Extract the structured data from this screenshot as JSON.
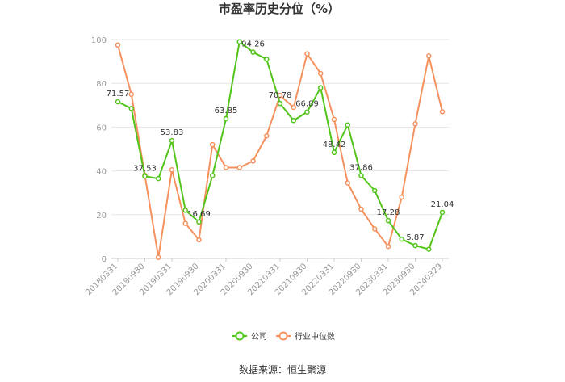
{
  "chart_data": {
    "type": "line",
    "title": "市盈率历史分位（%）",
    "x": [
      "20180331",
      "20180630",
      "20180930",
      "20181231",
      "20190331",
      "20190630",
      "20190930",
      "20191231",
      "20200331",
      "20200630",
      "20200930",
      "20201231",
      "20210331",
      "20210630",
      "20210930",
      "20211231",
      "20220331",
      "20220630",
      "20220930",
      "20221231",
      "20230331",
      "20230630",
      "20230930",
      "20231231",
      "20240329"
    ],
    "xtick_labels": [
      "20180331",
      "20180930",
      "20190331",
      "20190930",
      "20200331",
      "20200930",
      "20210331",
      "20210930",
      "20220331",
      "20220930",
      "20230331",
      "20230930",
      "20240329"
    ],
    "ylim": [
      0,
      100
    ],
    "yticks": [
      0,
      20,
      40,
      60,
      80,
      100
    ],
    "grid": "horizontal",
    "legend_position": "bottom",
    "series": [
      {
        "name": "公司",
        "color": "#52c41a",
        "values": [
          71.57,
          68.5,
          37.53,
          36.5,
          53.83,
          22.0,
          16.69,
          37.8,
          63.85,
          99.0,
          94.26,
          91.0,
          70.78,
          63.0,
          66.89,
          78.0,
          48.42,
          61.0,
          37.86,
          31.0,
          17.28,
          8.8,
          5.87,
          4.2,
          21.04
        ],
        "labels": {
          "0": "71.57",
          "2": "37.53",
          "4": "53.83",
          "6": "16.69",
          "8": "63.85",
          "10": "94.26",
          "12": "70.78",
          "14": "66.89",
          "16": "48.42",
          "18": "37.86",
          "20": "17.28",
          "22": "5.87",
          "24": "21.04"
        }
      },
      {
        "name": "行业中位数",
        "color": "#f5915e",
        "values": [
          97.5,
          75.0,
          38.0,
          0.5,
          40.5,
          16.0,
          8.5,
          52.0,
          41.5,
          41.5,
          44.5,
          56.0,
          74.5,
          69.0,
          93.5,
          84.5,
          63.5,
          34.5,
          22.5,
          13.5,
          5.5,
          28.0,
          61.5,
          92.5,
          67.0
        ]
      }
    ],
    "source": "数据来源：恒生聚源"
  }
}
